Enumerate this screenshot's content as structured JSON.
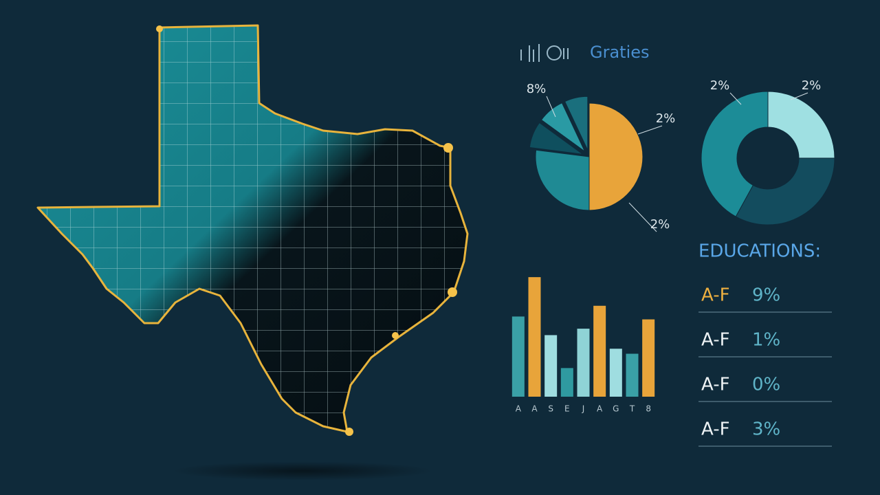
{
  "header": {
    "title": "Graties"
  },
  "chart_data": [
    {
      "type": "pie",
      "values": [
        50,
        27,
        8,
        8,
        7
      ],
      "colors": [
        "#e8a43a",
        "#1f8a94",
        "#0f4f5e",
        "#2a9aa4",
        "#1a6f7d"
      ],
      "annotations": [
        "8%",
        "2%",
        "2%"
      ]
    },
    {
      "type": "donut",
      "values": [
        25,
        33,
        42
      ],
      "colors": [
        "#9fe0e2",
        "#134c5e",
        "#1c8c97"
      ],
      "annotations": [
        "2%",
        "2%"
      ]
    },
    {
      "type": "bar",
      "categories": [
        "A",
        "A",
        "S",
        "E",
        "J",
        "A",
        "G",
        "T",
        "8"
      ],
      "values": [
        112,
        167,
        86,
        40,
        95,
        127,
        67,
        60,
        108
      ],
      "colors": [
        "#3aa0a6",
        "#e8a43a",
        "#9fdde0",
        "#2f9aa0",
        "#8fd3d6",
        "#e8a43a",
        "#9fdde0",
        "#3aa0a6",
        "#e8a43a"
      ],
      "ylim": [
        0,
        170
      ]
    }
  ],
  "education": {
    "title": "EDUCATIONS:",
    "rows": [
      {
        "grade": "A-F",
        "value": "9%"
      },
      {
        "grade": "A-F",
        "value": "1%"
      },
      {
        "grade": "A-F",
        "value": "0%"
      },
      {
        "grade": "A-F",
        "value": "3%"
      }
    ]
  }
}
